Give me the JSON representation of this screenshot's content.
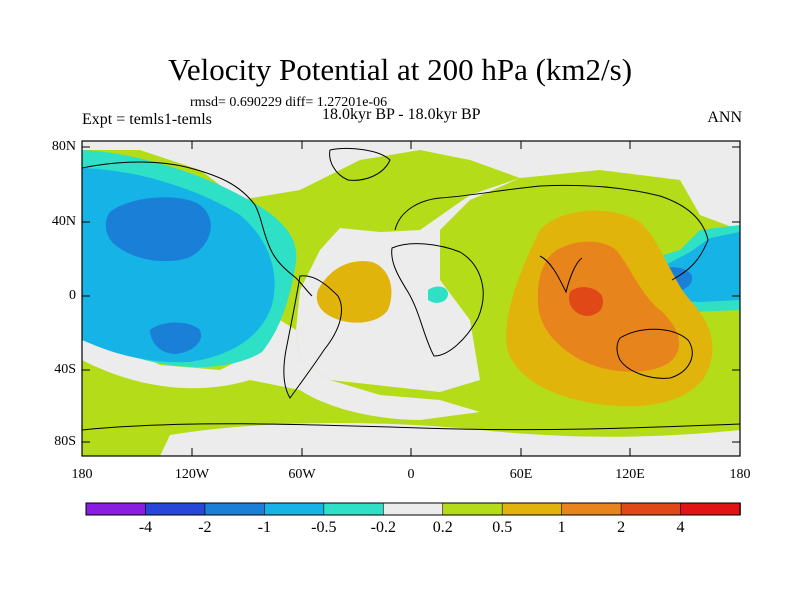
{
  "header": {
    "title": "Velocity Potential at 200 hPa (km2/s)",
    "stats": "rmsd= 0.690229 diff= 1.27201e-06",
    "experiment": "Expt = temls1-temls",
    "period": "18.0kyr BP - 18.0kyr BP",
    "season": "ANN"
  },
  "axes": {
    "lat_labels": [
      "80N",
      "40N",
      "0",
      "40S",
      "80S"
    ],
    "lon_labels": [
      "180",
      "120W",
      "60W",
      "0",
      "60E",
      "120E",
      "180"
    ]
  },
  "colorbar": {
    "labels": [
      "-4",
      "-2",
      "-1",
      "-0.5",
      "-0.2",
      "0.2",
      "0.5",
      "1",
      "2",
      "4"
    ],
    "colors": [
      "#8a1ee0",
      "#2846d8",
      "#1a7fd6",
      "#16b4e6",
      "#2ee0c6",
      "#ececec",
      "#b5dc18",
      "#e0b40a",
      "#e8841c",
      "#e04818",
      "#e01414"
    ]
  },
  "palette": {
    "land_outline": "#000000",
    "neutral": "#ececec",
    "light_neg": "#2ee0c6",
    "mid_neg": "#16b4e6",
    "strong_neg": "#1a7fd6",
    "light_pos": "#b5dc18",
    "mid_pos": "#e0b40a",
    "strong_pos": "#e8841c",
    "max_pos": "#e04818"
  }
}
